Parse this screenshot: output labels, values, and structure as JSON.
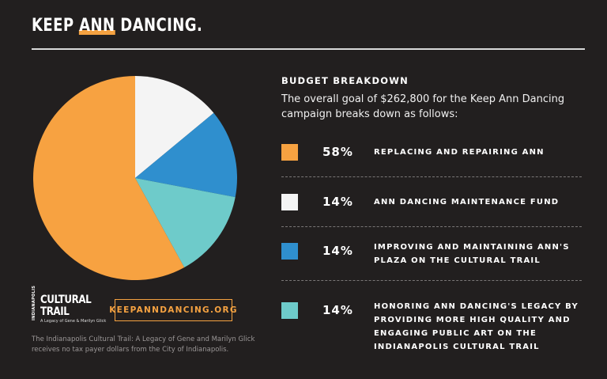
{
  "header": {
    "logo_pre": "KEEP ",
    "logo_ann": "ANN",
    "logo_post": " DANCING."
  },
  "section": {
    "title": "BUDGET BREAKDOWN",
    "intro": "The overall goal of $262,800 for the Keep Ann Dancing campaign breaks down as follows:"
  },
  "footer": {
    "trail_side": "INDIANAPOLIS",
    "trail_line1": "CULTURAL",
    "trail_line2": "TRAIL",
    "trail_tagline": "A Legacy of Gene & Marilyn Glick",
    "website": "KEEPANNDANCING.ORG",
    "disclaimer": "The Indianapolis Cultural Trail: A Legacy of Gene and Marilyn Glick receives no tax payer dollars from the City of Indianapolis."
  },
  "colors": {
    "background": "#221f1f",
    "orange": "#f7a241",
    "white": "#f4f4f4",
    "blue": "#2f8fce",
    "teal": "#6ecbca"
  },
  "chart_data": {
    "type": "pie",
    "title": "BUDGET BREAKDOWN",
    "categories": [
      "REPLACING AND REPAIRING ANN",
      "ANN DANCING MAINTENANCE FUND",
      "IMPROVING AND MAINTAINING ANN'S PLAZA ON THE CULTURAL TRAIL",
      "HONORING ANN DANCING'S LEGACY BY PROVIDING MORE HIGH QUALITY AND ENGAGING PUBLIC ART ON THE INDIANAPOLIS CULTURAL TRAIL"
    ],
    "values": [
      58,
      14,
      14,
      14
    ],
    "value_labels": [
      "58%",
      "14%",
      "14%",
      "14%"
    ],
    "colors": [
      "#f7a241",
      "#f4f4f4",
      "#2f8fce",
      "#6ecbca"
    ],
    "legend_placement": "right"
  }
}
